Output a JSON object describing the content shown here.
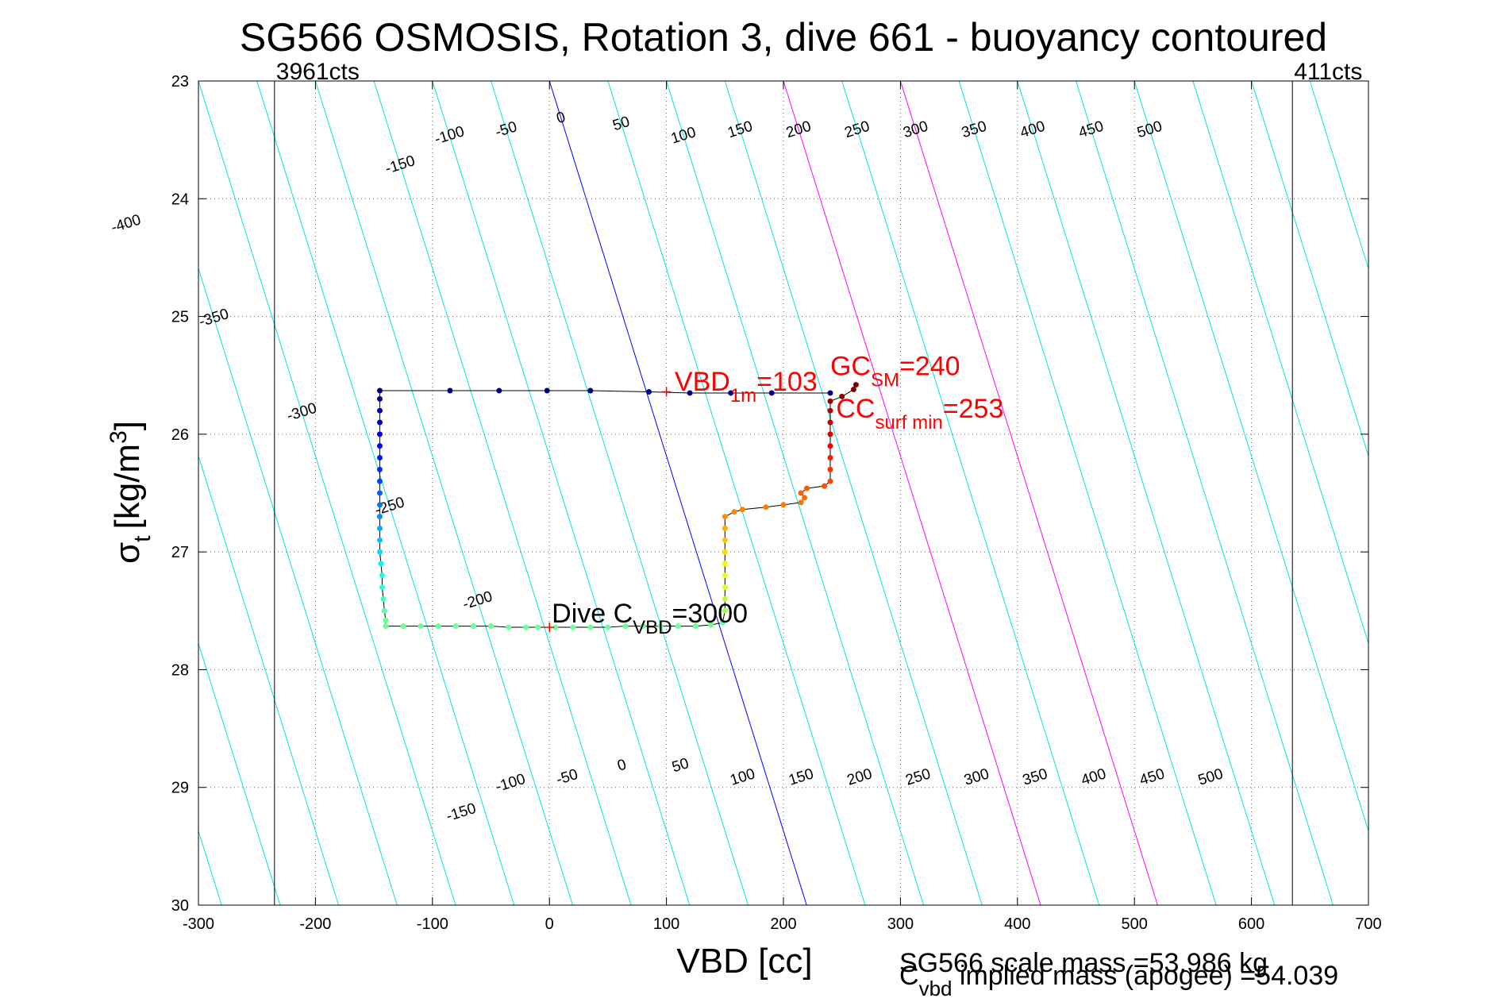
{
  "chart_data": {
    "type": "line",
    "title": "SG566 OSMOSIS, Rotation 3, dive 661 - buoyancy contoured",
    "xlabel": "VBD [cc]",
    "ylabel_main": "σ",
    "ylabel_sub": "t",
    "ylabel_units": "[kg/m",
    "ylabel_sup": "3",
    "ylabel_close": "]",
    "xlim": [
      -300,
      700
    ],
    "ylim": [
      23,
      30
    ],
    "y_reversed": true,
    "grid": true,
    "xticks": [
      "-300",
      "-200",
      "-100",
      "0",
      "100",
      "200",
      "300",
      "400",
      "500",
      "600",
      "700"
    ],
    "yticks": [
      "23",
      "24",
      "25",
      "26",
      "27",
      "28",
      "29",
      "30"
    ],
    "contour_slope_vbd_per_sigma": 31.4,
    "contour_colors": {
      "default": "#00e5e5",
      "zero": "#0000ff",
      "highlight": "#ff00ff"
    },
    "contours": {
      "top_labels": [
        {
          "text": "-400",
          "v": -400,
          "sigma": 24.25
        },
        {
          "text": "-350",
          "v": -350,
          "sigma": 25.05
        },
        {
          "text": "-300",
          "v": -300,
          "sigma": 25.85
        },
        {
          "text": "-250",
          "v": -250,
          "sigma": 26.65
        },
        {
          "text": "-200",
          "v": -200,
          "sigma": 27.45
        },
        {
          "text": "-150",
          "v": -150,
          "sigma": 23.75
        },
        {
          "text": "-100",
          "v": -100,
          "sigma": 23.5
        },
        {
          "text": "-50",
          "v": -50,
          "sigma": 23.45
        },
        {
          "text": "0",
          "v": 0,
          "sigma": 23.35
        },
        {
          "text": "50",
          "v": 50,
          "sigma": 23.4
        },
        {
          "text": "100",
          "v": 100,
          "sigma": 23.5
        },
        {
          "text": "150",
          "v": 150,
          "sigma": 23.45
        },
        {
          "text": "200",
          "v": 200,
          "sigma": 23.45
        },
        {
          "text": "250",
          "v": 250,
          "sigma": 23.45
        },
        {
          "text": "300",
          "v": 300,
          "sigma": 23.45
        },
        {
          "text": "350",
          "v": 350,
          "sigma": 23.45
        },
        {
          "text": "400",
          "v": 400,
          "sigma": 23.45
        },
        {
          "text": "450",
          "v": 450,
          "sigma": 23.45
        },
        {
          "text": "500",
          "v": 500,
          "sigma": 23.45
        }
      ],
      "bottom_labels": [
        {
          "text": "-150",
          "v": -150,
          "sigma": 29.25
        },
        {
          "text": "-100",
          "v": -100,
          "sigma": 29.0
        },
        {
          "text": "-50",
          "v": -50,
          "sigma": 28.95
        },
        {
          "text": "0",
          "v": 0,
          "sigma": 28.85
        },
        {
          "text": "50",
          "v": 50,
          "sigma": 28.85
        },
        {
          "text": "100",
          "v": 100,
          "sigma": 28.95
        },
        {
          "text": "150",
          "v": 150,
          "sigma": 28.95
        },
        {
          "text": "200",
          "v": 200,
          "sigma": 28.95
        },
        {
          "text": "250",
          "v": 250,
          "sigma": 28.95
        },
        {
          "text": "300",
          "v": 300,
          "sigma": 28.95
        },
        {
          "text": "350",
          "v": 350,
          "sigma": 28.95
        },
        {
          "text": "400",
          "v": 400,
          "sigma": 28.95
        },
        {
          "text": "450",
          "v": 450,
          "sigma": 28.95
        },
        {
          "text": "500",
          "v": 500,
          "sigma": 28.95
        }
      ]
    },
    "bottom_family_offset": 3.84,
    "vertical_lines": [
      {
        "x": -235,
        "label": "3961cts"
      },
      {
        "x": 635,
        "label": "411cts"
      }
    ],
    "series": [
      {
        "points": [
          [
            -145,
            25.63
          ],
          [
            -85,
            25.63
          ],
          [
            -43,
            25.63
          ],
          [
            -2,
            25.63
          ],
          [
            35,
            25.63
          ],
          [
            85,
            25.64
          ],
          [
            120,
            25.65
          ],
          [
            155,
            25.65
          ],
          [
            190,
            25.65
          ],
          [
            240,
            25.65
          ],
          [
            -145,
            25.7
          ],
          [
            -145,
            25.8
          ],
          [
            -145,
            25.9
          ],
          [
            -145,
            26.0
          ],
          [
            -145,
            26.1
          ],
          [
            -145,
            26.2
          ],
          [
            -145,
            26.3
          ],
          [
            -145,
            26.4
          ],
          [
            -145,
            26.5
          ],
          [
            -145,
            26.6
          ],
          [
            -145,
            26.7
          ],
          [
            -145,
            26.8
          ],
          [
            -145,
            26.9
          ],
          [
            -145,
            27.0
          ],
          [
            -144,
            27.1
          ],
          [
            -143,
            27.2
          ],
          [
            -143,
            27.3
          ],
          [
            -142,
            27.4
          ],
          [
            -141,
            27.5
          ],
          [
            -140,
            27.58
          ],
          [
            -140,
            27.63
          ],
          [
            -125,
            27.63
          ],
          [
            -110,
            27.63
          ],
          [
            -95,
            27.63
          ],
          [
            -80,
            27.63
          ],
          [
            -65,
            27.63
          ],
          [
            -50,
            27.63
          ],
          [
            -35,
            27.64
          ],
          [
            -20,
            27.64
          ],
          [
            -10,
            27.64
          ],
          [
            5,
            27.64
          ],
          [
            20,
            27.64
          ],
          [
            35,
            27.64
          ],
          [
            50,
            27.64
          ],
          [
            65,
            27.63
          ],
          [
            80,
            27.63
          ],
          [
            95,
            27.63
          ],
          [
            110,
            27.63
          ],
          [
            125,
            27.63
          ],
          [
            138,
            27.62
          ],
          [
            148,
            27.6
          ],
          [
            150,
            27.5
          ],
          [
            150,
            27.4
          ],
          [
            150,
            27.3
          ],
          [
            150,
            27.2
          ],
          [
            150,
            27.1
          ],
          [
            150,
            27.0
          ],
          [
            150,
            26.9
          ],
          [
            150,
            26.8
          ],
          [
            150,
            26.7
          ],
          [
            158,
            26.66
          ],
          [
            165,
            26.64
          ],
          [
            185,
            26.62
          ],
          [
            200,
            26.6
          ],
          [
            215,
            26.58
          ],
          [
            218,
            26.54
          ],
          [
            215,
            26.5
          ],
          [
            220,
            26.46
          ],
          [
            235,
            26.44
          ],
          [
            240,
            26.4
          ],
          [
            240,
            26.3
          ],
          [
            240,
            26.2
          ],
          [
            240,
            26.1
          ],
          [
            240,
            26.0
          ],
          [
            240,
            25.9
          ],
          [
            240,
            25.8
          ],
          [
            240,
            25.72
          ],
          [
            250,
            25.68
          ],
          [
            260,
            25.62
          ],
          [
            262,
            25.58
          ]
        ]
      }
    ],
    "markers": [
      {
        "x": 100,
        "y": 25.64,
        "color": "#ff0000"
      },
      {
        "x": 0,
        "y": 27.64,
        "color": "#ff0000"
      }
    ],
    "annotations": [
      {
        "main": "VBD",
        "sub": "1m",
        "rest": "=103",
        "x": 107,
        "y": 25.63,
        "color": "#ff0000"
      },
      {
        "main": "GC",
        "sub": "SM",
        "rest": "=240",
        "x": 240,
        "y": 25.5,
        "color": "#ff0000"
      },
      {
        "main": "CC",
        "sub": "surf min",
        "rest": "=253",
        "x": 245,
        "y": 25.86,
        "color": "#ff0000"
      },
      {
        "main": "Dive C",
        "sub": "VBD",
        "rest": "=3000",
        "x": 2,
        "y": 27.6,
        "color": "#000000"
      }
    ],
    "footer": {
      "scale_mass": "SG566 scale mass =53.986 kg",
      "cvbd_main": "C",
      "cvbd_sub": "vbd",
      "cvbd_rest": " implied mass (apogee) =54.039"
    }
  }
}
